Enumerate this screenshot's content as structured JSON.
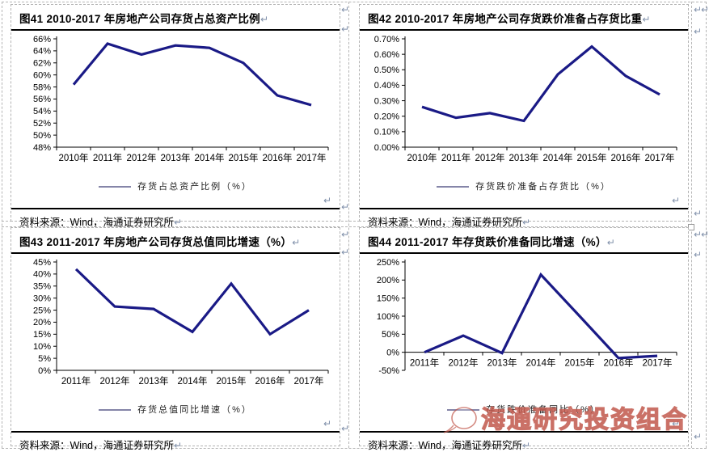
{
  "page": {
    "return_mark": "↵",
    "watermark": {
      "text": "海通研究投资组合",
      "color": "#c05448"
    },
    "axis_color": "#000000",
    "legend_line_color": "#8585a8"
  },
  "chart_data": [
    {
      "type": "line",
      "title": "图41 2010-2017 年房地产公司存货占总资产比例",
      "legend": "存货占总资产比例（%）",
      "source": "资料来源：Wind，海通证券研究所",
      "xlabel": "",
      "ylabel": "",
      "categories": [
        "2010年",
        "2011年",
        "2012年",
        "2013年",
        "2014年",
        "2015年",
        "2016年",
        "2017年"
      ],
      "values": [
        58.4,
        65.2,
        63.4,
        64.9,
        64.5,
        62.0,
        56.6,
        55.0
      ],
      "ylim": [
        48,
        66
      ],
      "yticks": [
        {
          "v": 66,
          "label": "66%"
        },
        {
          "v": 64,
          "label": "64%"
        },
        {
          "v": 62,
          "label": "62%"
        },
        {
          "v": 60,
          "label": "60%"
        },
        {
          "v": 58,
          "label": "58%"
        },
        {
          "v": 56,
          "label": "56%"
        },
        {
          "v": 54,
          "label": "54%"
        },
        {
          "v": 52,
          "label": "52%"
        },
        {
          "v": 50,
          "label": "50%"
        },
        {
          "v": 48,
          "label": "48%"
        }
      ],
      "grid": false,
      "line_color": "#1a1a86"
    },
    {
      "type": "line",
      "title": "图42 2010-2017 年房地产公司存货跌价准备占存货比重",
      "legend": "存货跌价准备占存货比（%）",
      "source": "资料来源：Wind，海通证券研究所",
      "xlabel": "",
      "ylabel": "",
      "categories": [
        "2010年",
        "2011年",
        "2012年",
        "2013年",
        "2014年",
        "2015年",
        "2016年",
        "2017年"
      ],
      "values": [
        0.26,
        0.19,
        0.22,
        0.17,
        0.47,
        0.65,
        0.46,
        0.34
      ],
      "ylim": [
        0,
        0.7
      ],
      "yticks": [
        {
          "v": 0.7,
          "label": "0.70%"
        },
        {
          "v": 0.6,
          "label": "0.60%"
        },
        {
          "v": 0.5,
          "label": "0.50%"
        },
        {
          "v": 0.4,
          "label": "0.40%"
        },
        {
          "v": 0.3,
          "label": "0.30%"
        },
        {
          "v": 0.2,
          "label": "0.20%"
        },
        {
          "v": 0.1,
          "label": "0.10%"
        },
        {
          "v": 0,
          "label": "0.00%"
        }
      ],
      "grid": false,
      "line_color": "#1a1a86"
    },
    {
      "type": "line",
      "title": "图43 2011-2017 年房地产公司存货总值同比增速（%）",
      "legend": "存货总值同比增速（%）",
      "source": "资料来源：Wind，海通证券研究所",
      "xlabel": "",
      "ylabel": "",
      "categories": [
        "2011年",
        "2012年",
        "2013年",
        "2014年",
        "2015年",
        "2016年",
        "2017年"
      ],
      "values": [
        42,
        26.5,
        25.5,
        16,
        36,
        15,
        25
      ],
      "ylim": [
        0,
        45
      ],
      "yticks": [
        {
          "v": 45,
          "label": "45%"
        },
        {
          "v": 40,
          "label": "40%"
        },
        {
          "v": 35,
          "label": "35%"
        },
        {
          "v": 30,
          "label": "30%"
        },
        {
          "v": 25,
          "label": "25%"
        },
        {
          "v": 20,
          "label": "20%"
        },
        {
          "v": 15,
          "label": "15%"
        },
        {
          "v": 10,
          "label": "10%"
        },
        {
          "v": 5,
          "label": "5%"
        },
        {
          "v": 0,
          "label": "0%"
        }
      ],
      "grid": false,
      "line_color": "#1a1a86"
    },
    {
      "type": "line",
      "title": "图44 2011-2017 年存货跌价准备同比增速（%）",
      "legend": "存货跌价准备同比（%）",
      "source": "资料来源：Wind，海通证券研究所",
      "xlabel": "",
      "ylabel": "",
      "categories": [
        "2011年",
        "2012年",
        "2013年",
        "2014年",
        "2015年",
        "2016年",
        "2017年"
      ],
      "values": [
        0,
        46,
        -2,
        215,
        100,
        -16,
        -10
      ],
      "ylim": [
        -50,
        250
      ],
      "xaxis_at": 0,
      "yticks": [
        {
          "v": 250,
          "label": "250%"
        },
        {
          "v": 200,
          "label": "200%"
        },
        {
          "v": 150,
          "label": "150%"
        },
        {
          "v": 100,
          "label": "100%"
        },
        {
          "v": 50,
          "label": "50%"
        },
        {
          "v": 0,
          "label": "0%"
        },
        {
          "v": -50,
          "label": "-50%"
        }
      ],
      "grid": false,
      "line_color": "#1a1a86"
    }
  ]
}
